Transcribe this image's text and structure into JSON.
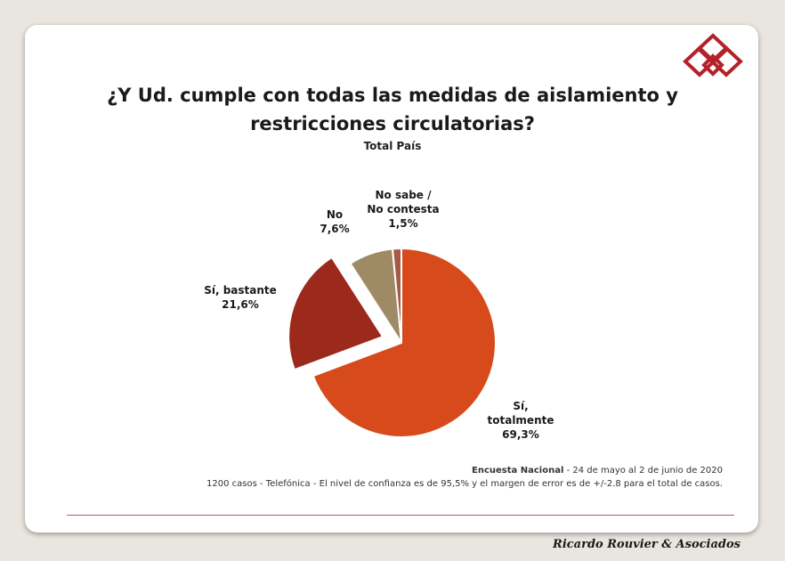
{
  "title_line1": "¿Y Ud. cumple con todas las medidas de aislamiento y",
  "title_line2": "restricciones circulatorias?",
  "subtitle": "Total País",
  "footer": {
    "survey_name": "Encuesta Nacional",
    "survey_dates": " - 24 de mayo al 2 de junio de 2020",
    "methodology": "1200 casos - Telefónica   - El nivel de confianza es de 95,5% y el margen de error es de +/-2.8 para el total de casos."
  },
  "brand": "Ricardo Rouvier & Asociados",
  "chart_data": {
    "type": "pie",
    "title": "¿Y Ud. cumple con todas las medidas de aislamiento y restricciones circulatorias?",
    "subtitle": "Total País",
    "slices": [
      {
        "label_lines": [
          "Sí,",
          "totalmente"
        ],
        "value": 69.3,
        "value_label": "69,3%",
        "color": "#d64a1c",
        "exploded": false
      },
      {
        "label_lines": [
          "Sí, bastante"
        ],
        "value": 21.6,
        "value_label": "21,6%",
        "color": "#9c2a1c",
        "exploded": true
      },
      {
        "label_lines": [
          "No"
        ],
        "value": 7.6,
        "value_label": "7,6%",
        "color": "#9f8a66",
        "exploded": false
      },
      {
        "label_lines": [
          "No sabe /",
          "No contesta"
        ],
        "value": 1.5,
        "value_label": "1,5%",
        "color": "#a55a45",
        "exploded": false
      }
    ]
  }
}
